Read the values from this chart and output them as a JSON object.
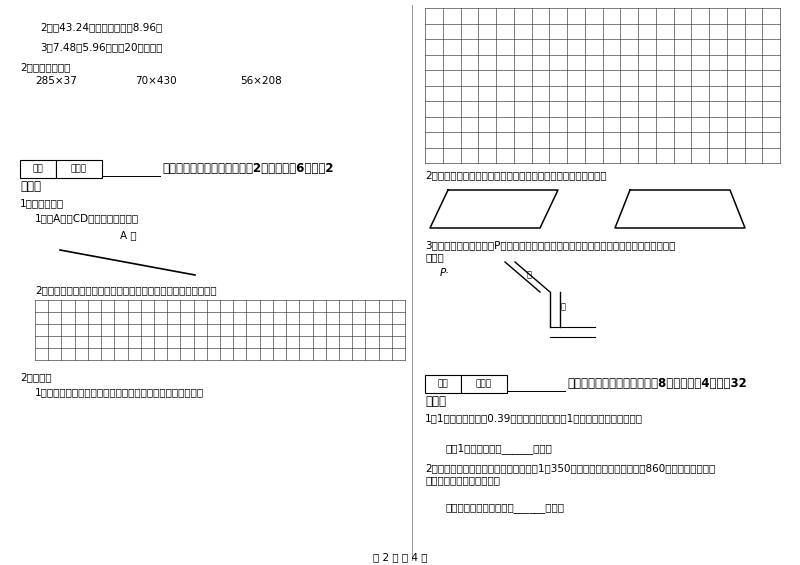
{
  "bg_color": "#ffffff",
  "texts": {
    "item2": "2．从43.24里减去什么数得8.96？",
    "item3": "3．7.48与5.96的和比20少多少？",
    "item2_calc": "2．用竖式计算。",
    "calc1": "285×37",
    "calc2": "70×430",
    "calc3": "56×208",
    "section5_box1": "得分",
    "section5_box2": "评卷人",
    "section5_title": "五、认真思考，综合能力（共2小题，每题6分，共2",
    "section5_sub": "分）。",
    "q1_title": "1．动手操作。",
    "q1_sub1": "1．过A点做CD的垂线和平行线。",
    "point_a": "A ．",
    "q1_sub2": "2．在下面方格纸上画出一个平行四边形与梯形，并为它们做高。",
    "q2_title": "2．作图。",
    "q2_sub1": "1．在下面的方格纸中分别画一个等腾梯形和一个直角梯形。",
    "right_grid_q2": "2．在下图中，各画一条线段，把它分成一个三角形和一个梯形。",
    "right_q3_title": "3．河岸上有一个喷水口P，从小河中插一根水管到喷水口，怎样插最省材料？（在图中画",
    "right_q3_sub": "出来）",
    "right_p_label": "P",
    "right_xiao_label": "小",
    "right_he_label": "河",
    "section6_box1": "得分",
    "section6_box2": "评卷人",
    "section6_title": "六、应用知识，解决问题（共8小题，每题4分，共32",
    "section6_sub": "分）。",
    "app1": "1．1千克黄豆可榨油0.39千克。照这样计算，1吨黄豆可榨油多少千克？",
    "app1_ans": "答：1吨黄豆可榨油______千克。",
    "app2": "2．亮亮和妈妈到超市买东西，亮亮买了1瓶350毫升的饮料，妈妈买了一瓶860毫升的饮料，他们",
    "app2b": "俩的饮料一共是多少毫升？",
    "app2_ans": "答：他们俩的饮料一共是______毫升。",
    "footer": "第 2 页 共 4 页"
  }
}
